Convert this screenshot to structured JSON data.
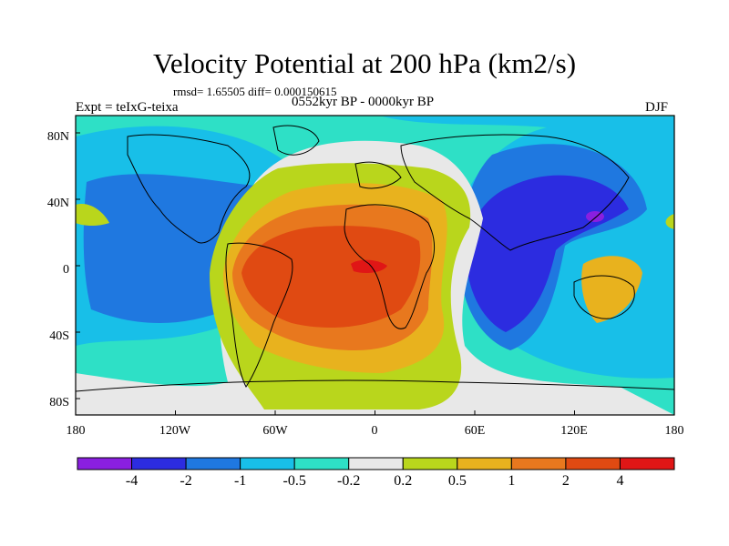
{
  "title": "Velocity Potential at 200 hPa (km2/s)",
  "stats_line": "rmsd= 1.65505 diff= 0.000150615",
  "expt_label": "Expt = teIxG-teixa",
  "period_label": "0552kyr BP - 0000kyr BP",
  "season_label": "DJF",
  "map": {
    "lat_ticks": [
      "80N",
      "40N",
      "0",
      "40S",
      "80S"
    ],
    "lon_ticks": [
      "180",
      "120W",
      "60W",
      "0",
      "60E",
      "120E",
      "180"
    ]
  },
  "colorbar": {
    "colors": [
      "#8a1fe0",
      "#2c2ce0",
      "#1f78e0",
      "#18bfe8",
      "#2ee0c6",
      "#e8e8e8",
      "#b9d61c",
      "#e8b21e",
      "#e8781e",
      "#e04a12",
      "#e01616"
    ],
    "labels": [
      "-4",
      "-2",
      "-1",
      "-0.5",
      "-0.2",
      "0.2",
      "0.5",
      "1",
      "2",
      "4"
    ]
  }
}
